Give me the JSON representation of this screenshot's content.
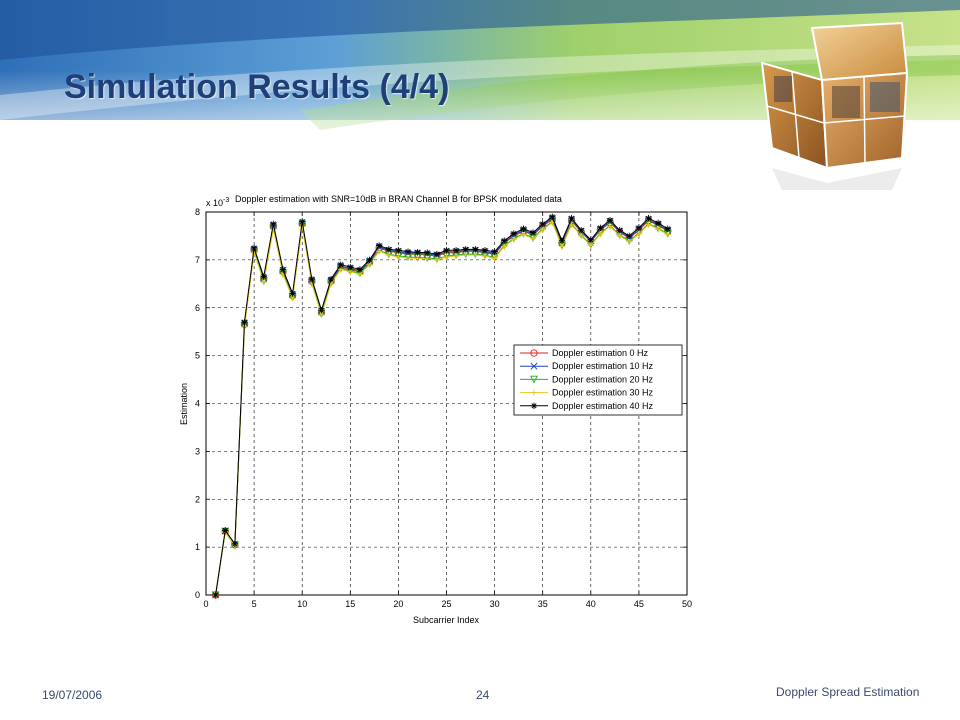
{
  "slide": {
    "title": "Simulation Results (4/4)",
    "date": "19/07/2006",
    "page_number": "24",
    "topic": "Doppler Spread Estimation"
  },
  "colors": {
    "title": "#1f3f7a",
    "banner_green": "#8fc93a",
    "banner_blue": "#3f7fc6"
  },
  "chart_data": {
    "type": "line",
    "title": "Doppler estimation with SNR=10dB in BRAN Channel B for BPSK modulated data",
    "xlabel": "Subcarrier Index",
    "ylabel": "Estimation",
    "y_multiplier": "x 10",
    "y_multiplier_exp": "-3",
    "xlim": [
      0,
      50
    ],
    "ylim": [
      0,
      8
    ],
    "xticks": [
      "0",
      "5",
      "10",
      "15",
      "20",
      "25",
      "30",
      "35",
      "40",
      "45",
      "50"
    ],
    "yticks": [
      "0",
      "1",
      "2",
      "3",
      "4",
      "5",
      "6",
      "7",
      "8"
    ],
    "grid": true,
    "legend_position": "right-middle",
    "x": [
      1,
      2,
      3,
      4,
      5,
      6,
      7,
      8,
      9,
      10,
      11,
      12,
      13,
      14,
      15,
      16,
      17,
      18,
      19,
      20,
      21,
      22,
      23,
      24,
      25,
      26,
      27,
      28,
      29,
      30,
      31,
      32,
      33,
      34,
      35,
      36,
      37,
      38,
      39,
      40,
      41,
      42,
      43,
      44,
      45,
      46,
      47,
      48
    ],
    "series": [
      {
        "name": "Doppler estimation 0 Hz",
        "color": "#e02020",
        "marker": "circle",
        "values": [
          0,
          1.33,
          1.05,
          5.65,
          7.2,
          6.6,
          7.7,
          6.75,
          6.25,
          7.75,
          6.55,
          5.9,
          6.55,
          6.85,
          6.8,
          6.75,
          6.95,
          7.25,
          7.18,
          7.15,
          7.12,
          7.12,
          7.1,
          7.08,
          7.15,
          7.15,
          7.18,
          7.18,
          7.15,
          7.12,
          7.35,
          7.5,
          7.6,
          7.52,
          7.7,
          7.85,
          7.35,
          7.82,
          7.58,
          7.38,
          7.62,
          7.78,
          7.58,
          7.45,
          7.62,
          7.82,
          7.72,
          7.6
        ]
      },
      {
        "name": "Doppler estimation 10 Hz",
        "color": "#2040c0",
        "marker": "x",
        "values": [
          0,
          1.34,
          1.06,
          5.68,
          7.22,
          6.62,
          7.72,
          6.78,
          6.27,
          7.77,
          6.57,
          5.92,
          6.57,
          6.87,
          6.82,
          6.77,
          6.97,
          7.27,
          7.2,
          7.17,
          7.14,
          7.14,
          7.12,
          7.1,
          7.17,
          7.17,
          7.2,
          7.2,
          7.17,
          7.14,
          7.37,
          7.52,
          7.62,
          7.54,
          7.72,
          7.87,
          7.37,
          7.84,
          7.6,
          7.4,
          7.64,
          7.8,
          7.6,
          7.47,
          7.64,
          7.84,
          7.74,
          7.62
        ]
      },
      {
        "name": "Doppler estimation 20 Hz",
        "color": "#20b020",
        "marker": "triangle-down",
        "values": [
          0,
          1.32,
          1.03,
          5.62,
          7.18,
          6.56,
          7.66,
          6.72,
          6.22,
          7.72,
          6.52,
          5.87,
          6.52,
          6.82,
          6.77,
          6.72,
          6.92,
          7.2,
          7.12,
          7.08,
          7.06,
          7.05,
          7.04,
          7.02,
          7.08,
          7.1,
          7.12,
          7.12,
          7.1,
          7.05,
          7.3,
          7.45,
          7.55,
          7.46,
          7.65,
          7.8,
          7.3,
          7.75,
          7.52,
          7.32,
          7.56,
          7.72,
          7.52,
          7.4,
          7.56,
          7.76,
          7.66,
          7.55
        ]
      },
      {
        "name": "Doppler estimation 30 Hz",
        "color": "#e8c820",
        "marker": "plus",
        "values": [
          0,
          1.31,
          1.02,
          5.6,
          7.16,
          6.54,
          7.64,
          6.7,
          6.2,
          7.7,
          6.5,
          5.85,
          6.5,
          6.8,
          6.75,
          6.7,
          6.9,
          7.18,
          7.1,
          7.06,
          7.04,
          7.03,
          7.02,
          7.0,
          7.06,
          7.08,
          7.1,
          7.1,
          7.08,
          7.03,
          7.28,
          7.43,
          7.53,
          7.44,
          7.63,
          7.78,
          7.28,
          7.73,
          7.5,
          7.3,
          7.54,
          7.7,
          7.5,
          7.38,
          7.54,
          7.74,
          7.64,
          7.53
        ]
      },
      {
        "name": "Doppler estimation 40 Hz",
        "color": "#000000",
        "marker": "star",
        "values": [
          0,
          1.35,
          1.07,
          5.7,
          7.25,
          6.65,
          7.75,
          6.8,
          6.3,
          7.8,
          6.6,
          5.95,
          6.6,
          6.9,
          6.85,
          6.8,
          7.0,
          7.3,
          7.22,
          7.2,
          7.17,
          7.16,
          7.15,
          7.12,
          7.2,
          7.2,
          7.22,
          7.22,
          7.2,
          7.17,
          7.4,
          7.55,
          7.65,
          7.57,
          7.75,
          7.9,
          7.4,
          7.87,
          7.62,
          7.42,
          7.67,
          7.83,
          7.62,
          7.5,
          7.67,
          7.87,
          7.77,
          7.65
        ]
      }
    ]
  }
}
